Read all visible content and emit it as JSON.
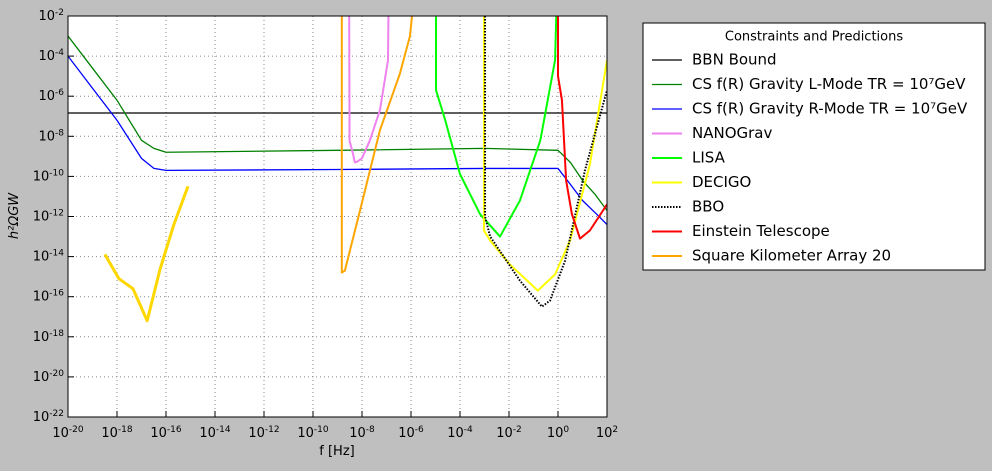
{
  "chart_data": {
    "type": "line",
    "xlabel": "f [Hz]",
    "ylabel": "h²ΩGW",
    "xscale": "log",
    "yscale": "log",
    "grid": true,
    "legend_title": "Constraints and Predictions",
    "legend_position": "outside-right",
    "xlim": [
      1e-20,
      100
    ],
    "ylim": [
      1e-22,
      0.01
    ],
    "xticks": [
      {
        "value": 1e-20,
        "label": "10-20"
      },
      {
        "value": 1e-18,
        "label": "10-18"
      },
      {
        "value": 1e-16,
        "label": "10-16"
      },
      {
        "value": 1e-14,
        "label": "10-14"
      },
      {
        "value": 1e-12,
        "label": "10-12"
      },
      {
        "value": 1e-10,
        "label": "10-10"
      },
      {
        "value": 1e-08,
        "label": "10-8"
      },
      {
        "value": 1e-06,
        "label": "10-6"
      },
      {
        "value": 0.0001,
        "label": "10-4"
      },
      {
        "value": 0.01,
        "label": "10-2"
      },
      {
        "value": 1,
        "label": "100"
      },
      {
        "value": 100,
        "label": "102"
      }
    ],
    "yticks": [
      {
        "value": 1e-22,
        "label": "10-22"
      },
      {
        "value": 1e-20,
        "label": "10-20"
      },
      {
        "value": 1e-18,
        "label": "10-18"
      },
      {
        "value": 1e-16,
        "label": "10-16"
      },
      {
        "value": 1e-14,
        "label": "10-14"
      },
      {
        "value": 1e-12,
        "label": "10-12"
      },
      {
        "value": 1e-10,
        "label": "10-10"
      },
      {
        "value": 1e-08,
        "label": "10-8"
      },
      {
        "value": 1e-06,
        "label": "10-6"
      },
      {
        "value": 0.0001,
        "label": "10-4"
      },
      {
        "value": 0.01,
        "label": "10-2"
      }
    ],
    "series": [
      {
        "name": "BBN Bound",
        "color": "#000000",
        "linewidth": 1.3,
        "x": [
          1e-20,
          100
        ],
        "values": [
          1.45e-07,
          1.45e-07
        ]
      },
      {
        "name": "CS f(R) Gravity L-Mode TR = 10⁷GeV",
        "color": "#008000",
        "linewidth": 1.3,
        "x": [
          1e-20,
          1e-19,
          1e-18,
          1e-17,
          3.2e-17,
          1e-16,
          1e-09,
          0.001,
          1,
          3.2,
          10,
          32,
          100
        ],
        "values": [
          0.001,
          2.5e-05,
          6.3e-07,
          6.3e-09,
          2.5e-09,
          1.6e-09,
          2e-09,
          2.5e-09,
          2e-09,
          5e-10,
          6.3e-11,
          1.3e-11,
          2e-12
        ]
      },
      {
        "name": "CS f(R) Gravity R-Mode TR = 10⁷GeV",
        "color": "#0000ff",
        "linewidth": 1.3,
        "x": [
          1e-20,
          1e-19,
          1e-18,
          1e-17,
          3.2e-17,
          1e-16,
          1e-09,
          0.001,
          1,
          3.2,
          10,
          32,
          100
        ],
        "values": [
          0.0001,
          2.5e-06,
          6.3e-08,
          7.9e-10,
          2.5e-10,
          2e-10,
          2.2e-10,
          2.5e-10,
          2.5e-10,
          4e-11,
          6.3e-12,
          1.6e-12,
          4e-13
        ]
      },
      {
        "name": "NANOGrav",
        "color": "#ee82ee",
        "linewidth": 2,
        "x": [
          3e-09,
          3.1e-09,
          4.2e-09,
          5.1e-09,
          6.5e-09,
          1e-08,
          2.1e-08,
          5.4e-08,
          1.15e-07,
          1.2e-07
        ],
        "values": [
          0.01,
          6e-09,
          1.5e-09,
          5e-10,
          5.5e-10,
          8e-10,
          6.3e-09,
          2e-07,
          6.3e-05,
          0.01
        ]
      },
      {
        "name": "LISA",
        "color": "#00ff00",
        "linewidth": 2,
        "x": [
          1.05e-05,
          1.05e-05,
          2.5e-05,
          0.0001,
          0.00066,
          0.0043,
          0.028,
          0.19,
          0.76,
          0.85
        ],
        "values": [
          0.01,
          2e-06,
          6.3e-08,
          1.3e-10,
          1.3e-12,
          1e-13,
          6.3e-12,
          6.3e-09,
          6.3e-05,
          0.01
        ]
      },
      {
        "name": "DECIGO",
        "color": "#ffff00",
        "linewidth": 2,
        "x": [
          0.00095,
          0.00095,
          0.0017,
          0.011,
          0.15,
          0.76,
          3.1,
          20,
          100
        ],
        "values": [
          0.01,
          2e-13,
          6.3e-14,
          4e-15,
          2e-16,
          1.3e-15,
          6.3e-14,
          4e-10,
          6.3e-05
        ]
      },
      {
        "name": "BBO",
        "color": "#000000",
        "linewidth": 2,
        "linestyle": "dotted",
        "x": [
          0.00105,
          0.00105,
          0.0017,
          0.028,
          0.22,
          0.47,
          1.95,
          12.6,
          100
        ],
        "values": [
          0.01,
          1e-12,
          1e-13,
          6.3e-16,
          3.2e-17,
          6.3e-17,
          6.3e-15,
          2e-10,
          2e-06
        ]
      },
      {
        "name": "Einstein Telescope",
        "color": "#ff0000",
        "linewidth": 2,
        "x": [
          1,
          1,
          1.45,
          2.14,
          3.7,
          7.9,
          20,
          100
        ],
        "values": [
          0.01,
          1e-05,
          6.3e-07,
          6.3e-11,
          1.3e-12,
          7.9e-14,
          2e-13,
          4e-12
        ]
      },
      {
        "name": "Square Kilometer Array 20",
        "color": "#ffa500",
        "linewidth": 2,
        "x": [
          1.5e-09,
          1.5e-09,
          2e-09,
          8.3e-09,
          5.4e-08,
          3.5e-07,
          9.1e-07,
          1.1e-06
        ],
        "values": [
          0.01,
          1.6e-15,
          2e-15,
          2e-12,
          2e-08,
          1.3e-05,
          0.001,
          0.01
        ]
      },
      {
        "color": "#ffd700",
        "linewidth": 3,
        "x": [
          3.2e-19,
          1.2e-18,
          4.5e-18,
          1.7e-17,
          5.8e-17,
          2.1e-16,
          7.9e-16
        ],
        "values": [
          1.3e-14,
          7.9e-16,
          2.5e-16,
          6.3e-18,
          2.5e-15,
          4e-13,
          3.2e-11
        ]
      }
    ]
  }
}
